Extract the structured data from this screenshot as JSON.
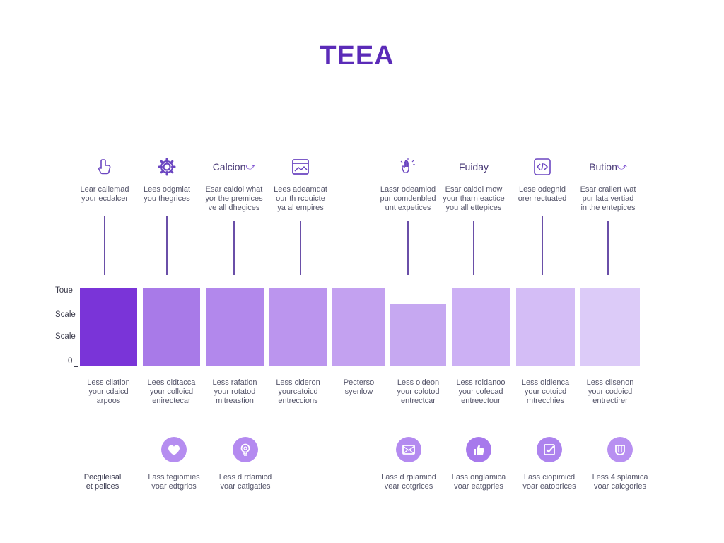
{
  "title": "TEEA",
  "accent_color": "#5b2bb8",
  "top_items": [
    {
      "icon": "hand-pointer-icon",
      "word": "",
      "desc": [
        "Lear callemad",
        "your ecdalcer"
      ]
    },
    {
      "icon": "gear-icon",
      "word": "",
      "desc": [
        "Lees odgmiat",
        "you thegrices"
      ]
    },
    {
      "icon": "word-arrow",
      "word": "Calcion",
      "desc": [
        "Esar caldol what",
        "yor the premices",
        "ve all dhegices"
      ]
    },
    {
      "icon": "browser-window-icon",
      "word": "",
      "desc": [
        "Lees adeamdat",
        "our th rcouicte",
        "ya al empires"
      ]
    },
    {
      "icon": "hand-wave-icon",
      "word": "",
      "desc": [
        "Lassr odeamiod",
        "pur comdenbled",
        "unt expetices"
      ]
    },
    {
      "icon": "word",
      "word": "Fuiday",
      "desc": [
        "Esar caldol mow",
        "your tharn eactice",
        "you all ettepices"
      ]
    },
    {
      "icon": "code-box-icon",
      "word": "",
      "desc": [
        "Lese odegnid",
        "orer rectuated"
      ]
    },
    {
      "icon": "word-arrow",
      "word": "Bution",
      "desc": [
        "Esar crallert wat",
        "pur lata vertiad",
        "in the entepices"
      ]
    }
  ],
  "chart_data": {
    "type": "bar",
    "y_tick_labels": [
      "Toue",
      "Scale",
      "Scale",
      "0"
    ],
    "values": [
      1.0,
      1.0,
      1.0,
      1.0,
      1.0,
      0.8,
      1.0,
      1.0,
      1.0
    ],
    "colors": [
      "#7a34d8",
      "#a87ae8",
      "#b288ec",
      "#bb95ee",
      "#c3a1f0",
      "#c6a8f1",
      "#ccb0f4",
      "#d4bdf6",
      "#dccbf8"
    ],
    "categories": [
      [
        "Less cliation",
        "your cdaicd",
        "arpoos"
      ],
      [
        "Lees oldtacca",
        "your colloicd",
        "enirectecar"
      ],
      [
        "Less rafation",
        "your rotatod",
        "mitreastion"
      ],
      [
        "Less clderon",
        "yourcatoicd",
        "entreccions"
      ],
      [
        "Pecterso",
        "syenlow"
      ],
      [
        "Less oldeon",
        "your colotod",
        "entrectcar"
      ],
      [
        "Less roldanoo",
        "your cofecad",
        "entreectour"
      ],
      [
        "Less oldlenca",
        "your cotoicd",
        "mtrecchies"
      ],
      [
        "Less clisenon",
        "your codoicd",
        "entrectirer"
      ]
    ]
  },
  "bottom_items": [
    {
      "icon": "",
      "desc": [
        "Pecgileisal",
        "et peiices"
      ]
    },
    {
      "icon": "heart-icon",
      "desc": [
        "Lass fegiomies",
        "voar edtgrios"
      ]
    },
    {
      "icon": "lightbulb-icon",
      "desc": [
        "Less d rdamicd",
        "voar catigaties"
      ]
    },
    {
      "icon": "envelope-icon",
      "desc": [
        "Lass d rpiamiod",
        "vear cotgrices"
      ]
    },
    {
      "icon": "thumbs-up-icon",
      "desc": [
        "Lass onglamica",
        "voar eatgpries"
      ]
    },
    {
      "icon": "checkmark-box-icon",
      "desc": [
        "Lass ciopimicd",
        "voar eatoprices"
      ]
    },
    {
      "icon": "cup-icon",
      "desc": [
        "Less 4 splamica",
        "voar calcgorles"
      ]
    }
  ]
}
